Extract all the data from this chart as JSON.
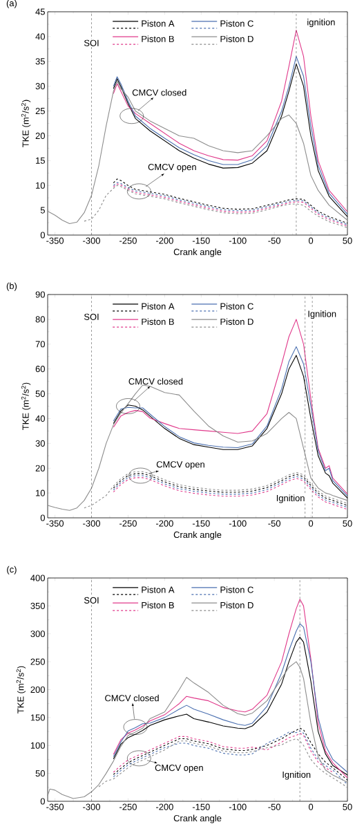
{
  "chart_data": [
    {
      "type": "line",
      "title": "(a)",
      "xlabel": "Crank angle",
      "ylabel": "TKE (m$^{2}$/s$^{2}$)",
      "legend": "top",
      "xlim": [
        -360,
        50
      ],
      "ylim": [
        0,
        45
      ],
      "xticks": [
        -350,
        -300,
        -250,
        -200,
        -150,
        -100,
        -50,
        0,
        50
      ],
      "yticks": [
        0,
        5,
        10,
        15,
        20,
        25,
        30,
        35,
        40,
        45
      ],
      "x": [
        -360,
        -350,
        -340,
        -330,
        -320,
        -310,
        -300,
        -290,
        -280,
        -270,
        -265,
        -260,
        -250,
        -240,
        -220,
        -200,
        -180,
        -160,
        -140,
        -120,
        -100,
        -80,
        -60,
        -40,
        -30,
        -20,
        -10,
        0,
        10,
        25,
        50
      ],
      "series": [
        {
          "name": "Piston A",
          "color": "#000000",
          "line_style": "solid",
          "values": [
            null,
            null,
            null,
            null,
            null,
            null,
            null,
            null,
            null,
            29.5,
            31.5,
            30,
            26.5,
            23.5,
            21,
            19,
            17,
            15.5,
            14.3,
            13.5,
            13.6,
            14.5,
            17,
            24,
            29,
            34.5,
            30,
            20,
            13,
            7.8,
            3.7
          ]
        },
        {
          "color": "#000000",
          "line_style": "dashed",
          "values": [
            null,
            null,
            null,
            null,
            null,
            null,
            null,
            null,
            null,
            10.5,
            11.3,
            11,
            10,
            9.2,
            8.7,
            8.2,
            7.4,
            6.7,
            6.0,
            5.4,
            5.2,
            5.3,
            6.0,
            6.7,
            7.1,
            7.3,
            7.2,
            6.0,
            4.8,
            3.7,
            2.4
          ]
        },
        {
          "name": "Piston B",
          "color": "#e0388a",
          "line_style": "solid",
          "values": [
            null,
            null,
            null,
            null,
            null,
            null,
            null,
            null,
            null,
            28.5,
            30.5,
            29,
            26,
            24.5,
            22.5,
            20.5,
            18.5,
            17,
            16,
            15.2,
            15.1,
            16,
            19,
            27,
            34,
            41.3,
            36,
            24,
            15,
            9,
            4.7
          ]
        },
        {
          "color": "#e0388a",
          "line_style": "dashed",
          "values": [
            null,
            null,
            null,
            null,
            null,
            null,
            null,
            null,
            null,
            9.7,
            10.3,
            10.1,
            9.3,
            8.6,
            8.1,
            7.6,
            6.8,
            6.1,
            5.4,
            4.8,
            4.6,
            4.7,
            5.4,
            6.1,
            6.5,
            6.7,
            6.6,
            5.4,
            4.2,
            3.1,
            1.8
          ]
        },
        {
          "name": "Piston C",
          "color": "#4a6fb0",
          "line_style": "solid",
          "values": [
            null,
            null,
            null,
            null,
            null,
            null,
            null,
            null,
            null,
            30,
            31.9,
            30.5,
            27,
            24,
            21.5,
            19.5,
            17.6,
            16.2,
            15,
            14.2,
            14.2,
            15.2,
            18,
            25,
            30,
            36,
            32,
            22,
            14,
            8.4,
            4.2
          ]
        },
        {
          "color": "#4a6fb0",
          "line_style": "dashed",
          "values": [
            null,
            null,
            null,
            null,
            null,
            null,
            null,
            null,
            null,
            10,
            10.6,
            10.4,
            9.6,
            8.9,
            8.4,
            7.9,
            7.1,
            6.4,
            5.7,
            5.1,
            4.9,
            5.0,
            5.7,
            6.4,
            6.8,
            7.0,
            6.9,
            5.7,
            4.5,
            3.4,
            2.1
          ]
        },
        {
          "name": "Piston D",
          "color": "#8c8c8c",
          "line_style": "solid",
          "values": [
            4.8,
            4,
            3,
            2.3,
            2.6,
            4.5,
            8,
            14,
            22,
            29,
            31,
            29.5,
            27.8,
            25,
            23,
            21.5,
            20,
            19.5,
            18,
            17,
            16.6,
            17,
            20,
            23.5,
            24.2,
            22.5,
            18.5,
            12,
            9,
            6,
            3
          ]
        },
        {
          "color": "#8c8c8c",
          "line_style": "dashed",
          "values": [
            null,
            null,
            null,
            null,
            null,
            2.8,
            3.2,
            5,
            8,
            9.4,
            10.0,
            9.8,
            9.0,
            8.3,
            7.8,
            7.3,
            6.5,
            5.8,
            5.1,
            4.5,
            4.3,
            4.4,
            5.1,
            5.9,
            6.2,
            6.3,
            6.0,
            4.8,
            3.8,
            2.7,
            1.5
          ]
        }
      ],
      "ref_lines": [
        {
          "axis": "x",
          "value": -300,
          "label": "SOI",
          "color": "#555555",
          "line_style": "dashed"
        },
        {
          "axis": "x",
          "value": -20,
          "label": "ignition",
          "color": "#555555",
          "line_style": "dashed"
        }
      ],
      "annotations": [
        {
          "text": "CMCV closed",
          "x": -245,
          "y": 24
        },
        {
          "text": "CMCV open",
          "x": -235,
          "y": 8.8
        }
      ]
    },
    {
      "type": "line",
      "title": "(b)",
      "xlabel": "Crank angle",
      "ylabel": "TKE (m$^{2}$/s$^{2}$)",
      "legend": "top",
      "xlim": [
        -360,
        50
      ],
      "ylim": [
        0,
        90
      ],
      "xticks": [
        -350,
        -300,
        -250,
        -200,
        -150,
        -100,
        -50,
        0,
        50
      ],
      "yticks": [
        0,
        10,
        20,
        30,
        40,
        50,
        60,
        70,
        80,
        90
      ],
      "x": [
        -360,
        -350,
        -340,
        -330,
        -320,
        -310,
        -300,
        -290,
        -280,
        -270,
        -260,
        -250,
        -240,
        -230,
        -220,
        -200,
        -180,
        -160,
        -140,
        -120,
        -100,
        -80,
        -60,
        -40,
        -30,
        -20,
        -10,
        0,
        10,
        20,
        25,
        30,
        50
      ],
      "series": [
        {
          "name": "Piston A",
          "color": "#000000",
          "line_style": "solid",
          "values": [
            null,
            null,
            null,
            null,
            null,
            null,
            null,
            null,
            null,
            38,
            43,
            45.5,
            45,
            43.5,
            41,
            36,
            32,
            29.5,
            28.5,
            27.5,
            27.5,
            29,
            36,
            50,
            60,
            65.5,
            57,
            40,
            25,
            18,
            17,
            14,
            8
          ]
        },
        {
          "color": "#000000",
          "line_style": "dashed",
          "values": [
            null,
            null,
            null,
            null,
            null,
            null,
            null,
            null,
            null,
            12,
            15,
            17,
            17.8,
            17.8,
            17,
            14.5,
            12.5,
            11.5,
            10.8,
            10.3,
            10.3,
            10.8,
            12.2,
            15,
            16.5,
            17.5,
            16.5,
            13,
            10,
            8,
            7.5,
            7,
            5
          ]
        },
        {
          "name": "Piston B",
          "color": "#e0388a",
          "line_style": "solid",
          "values": [
            null,
            null,
            null,
            null,
            null,
            null,
            null,
            null,
            null,
            36.5,
            41,
            42.5,
            43.3,
            42.8,
            40.2,
            38,
            36,
            35.5,
            35,
            34.5,
            34,
            35,
            42,
            62,
            73,
            80,
            70,
            48,
            28,
            20,
            21,
            16,
            9.6
          ]
        },
        {
          "color": "#e0388a",
          "line_style": "dashed",
          "values": [
            null,
            null,
            null,
            null,
            null,
            null,
            null,
            null,
            null,
            10.4,
            13.4,
            15.4,
            16.2,
            16.2,
            15.4,
            12.9,
            10.9,
            9.9,
            9.2,
            8.7,
            8.7,
            9.2,
            10.6,
            13.4,
            14.9,
            15.9,
            14.9,
            11.4,
            8.4,
            6.4,
            5.9,
            5.4,
            3.4
          ]
        },
        {
          "name": "Piston C",
          "color": "#4a6fb0",
          "line_style": "solid",
          "values": [
            null,
            null,
            null,
            null,
            null,
            null,
            null,
            null,
            null,
            39,
            43.8,
            44.5,
            44.3,
            44.3,
            41.8,
            36.8,
            32.7,
            30.2,
            29.2,
            28.5,
            28.3,
            29.8,
            37,
            52,
            63,
            69,
            62,
            45,
            27,
            19,
            20,
            15,
            8.8
          ]
        },
        {
          "color": "#4a6fb0",
          "line_style": "dashed",
          "values": [
            null,
            null,
            null,
            null,
            null,
            null,
            null,
            null,
            null,
            11.2,
            14.2,
            16.2,
            17,
            17,
            16.2,
            13.7,
            11.7,
            10.7,
            10,
            9.5,
            9.5,
            10,
            11.4,
            14.2,
            15.7,
            16.7,
            15.7,
            12.2,
            9.2,
            7.2,
            6.7,
            6.2,
            4.2
          ]
        },
        {
          "name": "Piston D",
          "color": "#8c8c8c",
          "line_style": "solid",
          "values": [
            5,
            4.2,
            3.5,
            3,
            4,
            7,
            12,
            20,
            30,
            37.5,
            42.2,
            46,
            50,
            53.5,
            53,
            50.5,
            49.5,
            43,
            37,
            33,
            30.5,
            31,
            34,
            40,
            42.5,
            40,
            28,
            16,
            12,
            10,
            9.6,
            9,
            7
          ]
        },
        {
          "color": "#8c8c8c",
          "line_style": "dashed",
          "values": [
            null,
            null,
            null,
            null,
            null,
            4,
            5,
            7,
            9,
            12.8,
            15.8,
            17.8,
            18.6,
            18.6,
            17.8,
            15.3,
            13.3,
            12.3,
            11.6,
            11.1,
            11.1,
            11.6,
            13,
            15.8,
            17.3,
            18.3,
            17.3,
            13.8,
            10.8,
            8.8,
            8.3,
            7.8,
            5.8
          ]
        }
      ],
      "ref_lines": [
        {
          "axis": "x",
          "value": -300,
          "label": "SOI",
          "color": "#555555",
          "line_style": "dashed"
        },
        {
          "axis": "x",
          "value": 2,
          "label": "Ignition",
          "color": "#555555",
          "line_style": "dashed"
        },
        {
          "axis": "x",
          "value": -8,
          "label": "Ignition",
          "color": "#555555",
          "line_style": "dashed"
        }
      ],
      "annotations": [
        {
          "text": "CMCV closed",
          "x": -250,
          "y": 45
        },
        {
          "text": "CMCV open",
          "x": -233,
          "y": 17
        }
      ]
    },
    {
      "type": "line",
      "title": "(c)",
      "xlabel": "Crank angle",
      "ylabel": "TKE (m$^{2}$/s$^{2}$)",
      "legend": "top",
      "xlim": [
        -360,
        50
      ],
      "ylim": [
        0,
        400
      ],
      "xticks": [
        -350,
        -300,
        -250,
        -200,
        -150,
        -100,
        -50,
        0,
        50
      ],
      "yticks": [
        0,
        50,
        100,
        150,
        200,
        250,
        300,
        350,
        400
      ],
      "x": [
        -360,
        -357,
        -350,
        -340,
        -325,
        -310,
        -300,
        -290,
        -280,
        -270,
        -260,
        -250,
        -240,
        -230,
        -220,
        -200,
        -180,
        -170,
        -160,
        -140,
        -120,
        -100,
        -90,
        -80,
        -60,
        -40,
        -30,
        -20,
        -15,
        -10,
        0,
        10,
        20,
        30,
        50
      ],
      "series": [
        {
          "name": "Piston A",
          "color": "#000000",
          "line_style": "solid",
          "values": [
            null,
            null,
            null,
            null,
            null,
            null,
            null,
            null,
            null,
            76,
            102,
            114,
            120,
            127,
            136,
            146,
            153,
            156,
            148,
            142,
            135,
            131,
            130,
            135,
            160,
            210,
            250,
            285,
            294,
            285,
            215,
            125,
            85,
            64,
            47
          ]
        },
        {
          "color": "#000000",
          "line_style": "dashed",
          "values": [
            null,
            null,
            null,
            null,
            null,
            null,
            null,
            null,
            null,
            48,
            59,
            69,
            76,
            82,
            88,
            100,
            112,
            112,
            108,
            103,
            94,
            91,
            91,
            93,
            100,
            112,
            120,
            127,
            131,
            128,
            105,
            85,
            70,
            60,
            38
          ]
        },
        {
          "name": "Piston B",
          "color": "#e0388a",
          "line_style": "solid",
          "values": [
            null,
            null,
            null,
            null,
            null,
            null,
            null,
            null,
            null,
            84,
            110,
            122,
            128,
            135,
            144,
            155,
            175,
            188,
            185,
            180,
            168,
            162,
            160,
            165,
            190,
            250,
            300,
            345,
            362,
            350,
            255,
            140,
            90,
            69,
            42
          ]
        },
        {
          "color": "#e0388a",
          "line_style": "dashed",
          "values": [
            null,
            null,
            null,
            null,
            null,
            null,
            null,
            null,
            null,
            52,
            64,
            74,
            80,
            86,
            92,
            104,
            116,
            116,
            112,
            107,
            98,
            95,
            95,
            97,
            92,
            106,
            114,
            118,
            122,
            118,
            90,
            70,
            60,
            52,
            null
          ]
        },
        {
          "name": "Piston C",
          "color": "#4a6fb0",
          "line_style": "solid",
          "values": [
            null,
            null,
            null,
            null,
            null,
            null,
            null,
            null,
            null,
            80,
            106,
            126,
            132,
            139,
            140,
            150,
            165,
            172,
            165,
            156,
            146,
            138,
            136,
            140,
            170,
            230,
            270,
            305,
            318,
            312,
            250,
            150,
            100,
            75,
            52
          ]
        },
        {
          "color": "#4a6fb0",
          "line_style": "dashed",
          "values": [
            null,
            null,
            null,
            null,
            null,
            null,
            null,
            null,
            null,
            44,
            55,
            65,
            72,
            78,
            84,
            96,
            104,
            104,
            100,
            95,
            86,
            83,
            83,
            85,
            104,
            116,
            124,
            123,
            126,
            122,
            95,
            75,
            64,
            56,
            30
          ]
        },
        {
          "name": "Piston D",
          "color": "#8c8c8c",
          "line_style": "solid",
          "values": [
            10,
            22,
            20,
            12,
            5,
            8,
            17,
            30,
            50,
            72,
            98,
            118,
            124,
            131,
            148,
            160,
            200,
            222,
            212,
            195,
            172,
            157,
            154,
            158,
            180,
            220,
            240,
            250,
            240,
            220,
            140,
            80,
            56,
            47,
            34
          ]
        },
        {
          "color": "#8c8c8c",
          "line_style": "dashed",
          "values": [
            null,
            null,
            null,
            null,
            null,
            null,
            null,
            26,
            36,
            40,
            50,
            60,
            68,
            74,
            80,
            92,
            108,
            108,
            104,
            99,
            90,
            87,
            87,
            89,
            96,
            101,
            108,
            112,
            108,
            100,
            75,
            60,
            50,
            42,
            25
          ]
        }
      ],
      "ref_lines": [
        {
          "axis": "x",
          "value": -300,
          "label": "SOI",
          "color": "#555555",
          "line_style": "dashed"
        },
        {
          "axis": "x",
          "value": -15,
          "label": "Ignition",
          "color": "#555555",
          "line_style": "dashed"
        }
      ],
      "annotations": [
        {
          "text": "CMCV closed",
          "x": -240,
          "y": 133
        },
        {
          "text": "CMCV open",
          "x": -235,
          "y": 77
        }
      ]
    }
  ]
}
